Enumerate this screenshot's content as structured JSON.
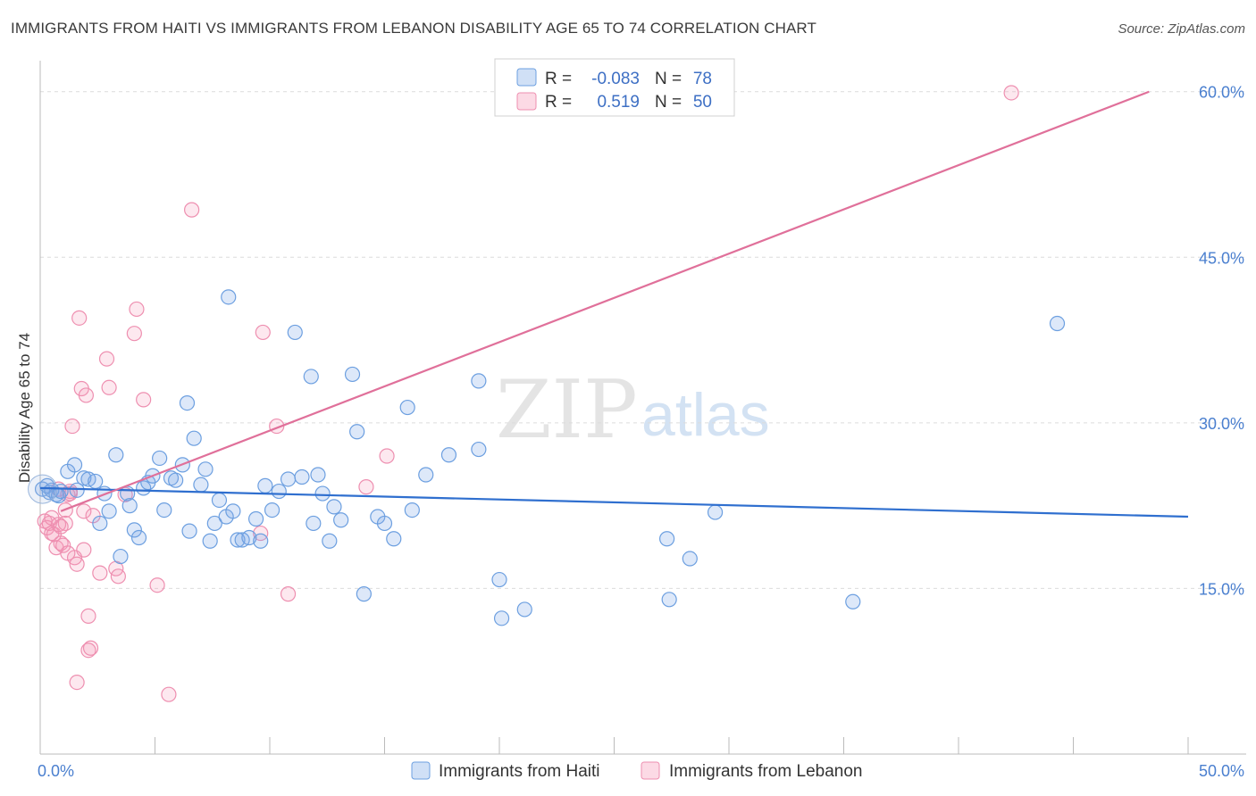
{
  "title": "IMMIGRANTS FROM HAITI VS IMMIGRANTS FROM LEBANON DISABILITY AGE 65 TO 74 CORRELATION CHART",
  "source": "Source: ZipAtlas.com",
  "watermark": {
    "zip": "ZIP",
    "atlas": "atlas"
  },
  "colors": {
    "haiti_fill": "rgba(120,165,230,0.25)",
    "haiti_stroke": "#6c9fe0",
    "haiti_line": "#2f6fcf",
    "lebanon_fill": "rgba(245,150,180,0.22)",
    "lebanon_stroke": "#ee8fb0",
    "lebanon_line": "#e0709a",
    "grid": "#dcdcdc",
    "tick_text": "#4a7fcf"
  },
  "legend": {
    "row1": {
      "r_label": "R =",
      "r_value": "-0.083",
      "n_label": "N =",
      "n_value": "78"
    },
    "row2": {
      "r_label": "R =",
      "r_value": "0.519",
      "n_label": "N =",
      "n_value": "50"
    }
  },
  "chart_data": {
    "type": "scatter",
    "title": "IMMIGRANTS FROM HAITI VS IMMIGRANTS FROM LEBANON DISABILITY AGE 65 TO 74 CORRELATION CHART",
    "xlabel": "",
    "ylabel": "Disability Age 65 to 74",
    "xlim": [
      0,
      50
    ],
    "ylim": [
      0,
      62
    ],
    "x_tick_labels": [
      {
        "value": 0,
        "label": "0.0%"
      },
      {
        "value": 50,
        "label": "50.0%"
      }
    ],
    "y_tick_labels": [
      {
        "value": 15,
        "label": "15.0%"
      },
      {
        "value": 30,
        "label": "30.0%"
      },
      {
        "value": 45,
        "label": "45.0%"
      },
      {
        "value": 60,
        "label": "60.0%"
      }
    ],
    "series": [
      {
        "name": "Immigrants from Haiti",
        "r": -0.083,
        "n": 78,
        "trend": {
          "x": [
            0,
            50
          ],
          "y": [
            24.1,
            21.5
          ]
        },
        "points": [
          [
            0.1,
            24.0
          ],
          [
            0.3,
            24.3
          ],
          [
            0.4,
            23.7
          ],
          [
            0.5,
            23.9
          ],
          [
            0.7,
            23.5
          ],
          [
            0.8,
            23.4
          ],
          [
            0.9,
            23.8
          ],
          [
            1.2,
            25.6
          ],
          [
            1.5,
            26.2
          ],
          [
            1.6,
            23.9
          ],
          [
            1.9,
            25.0
          ],
          [
            2.1,
            24.9
          ],
          [
            2.4,
            24.7
          ],
          [
            2.6,
            20.9
          ],
          [
            2.8,
            23.6
          ],
          [
            3.0,
            22.0
          ],
          [
            3.3,
            27.1
          ],
          [
            3.5,
            17.9
          ],
          [
            3.8,
            23.6
          ],
          [
            3.9,
            22.5
          ],
          [
            4.1,
            20.3
          ],
          [
            4.3,
            19.6
          ],
          [
            4.5,
            24.1
          ],
          [
            4.7,
            24.6
          ],
          [
            4.9,
            25.2
          ],
          [
            5.2,
            26.8
          ],
          [
            5.4,
            22.1
          ],
          [
            5.7,
            25.0
          ],
          [
            5.9,
            24.8
          ],
          [
            6.2,
            26.2
          ],
          [
            6.4,
            31.8
          ],
          [
            6.5,
            20.2
          ],
          [
            6.7,
            28.6
          ],
          [
            7.0,
            24.4
          ],
          [
            7.2,
            25.8
          ],
          [
            7.4,
            19.3
          ],
          [
            7.6,
            20.9
          ],
          [
            7.8,
            23.0
          ],
          [
            8.1,
            21.5
          ],
          [
            8.2,
            41.4
          ],
          [
            8.4,
            22.0
          ],
          [
            8.6,
            19.4
          ],
          [
            8.8,
            19.4
          ],
          [
            9.1,
            19.6
          ],
          [
            9.4,
            21.3
          ],
          [
            9.6,
            19.3
          ],
          [
            9.8,
            24.3
          ],
          [
            10.1,
            22.1
          ],
          [
            10.4,
            23.8
          ],
          [
            10.8,
            24.9
          ],
          [
            11.1,
            38.2
          ],
          [
            11.4,
            25.1
          ],
          [
            11.8,
            34.2
          ],
          [
            11.9,
            20.9
          ],
          [
            12.1,
            25.3
          ],
          [
            12.3,
            23.6
          ],
          [
            12.6,
            19.3
          ],
          [
            12.8,
            22.4
          ],
          [
            13.1,
            21.2
          ],
          [
            13.6,
            34.4
          ],
          [
            13.8,
            29.2
          ],
          [
            14.1,
            14.5
          ],
          [
            14.7,
            21.5
          ],
          [
            15.0,
            20.9
          ],
          [
            15.4,
            19.5
          ],
          [
            16.0,
            31.4
          ],
          [
            16.2,
            22.1
          ],
          [
            16.8,
            25.3
          ],
          [
            17.8,
            27.1
          ],
          [
            19.1,
            33.8
          ],
          [
            19.1,
            27.6
          ],
          [
            20.0,
            15.8
          ],
          [
            20.1,
            12.3
          ],
          [
            21.1,
            13.1
          ],
          [
            27.3,
            19.5
          ],
          [
            27.4,
            14.0
          ],
          [
            28.3,
            17.7
          ],
          [
            29.4,
            21.9
          ],
          [
            35.4,
            13.8
          ],
          [
            44.3,
            39.0
          ]
        ]
      },
      {
        "name": "Immigrants from Lebanon",
        "r": 0.519,
        "n": 50,
        "trend": {
          "x": [
            0.9,
            48.3
          ],
          "y": [
            22.0,
            60.0
          ]
        },
        "points": [
          [
            0.2,
            21.1
          ],
          [
            0.3,
            20.5
          ],
          [
            0.4,
            20.9
          ],
          [
            0.5,
            20.0
          ],
          [
            0.6,
            19.9
          ],
          [
            0.7,
            18.7
          ],
          [
            0.8,
            20.8
          ],
          [
            0.9,
            19.1
          ],
          [
            1.0,
            18.9
          ],
          [
            1.1,
            22.1
          ],
          [
            1.1,
            20.9
          ],
          [
            1.2,
            23.5
          ],
          [
            1.3,
            23.8
          ],
          [
            1.4,
            29.7
          ],
          [
            1.5,
            17.8
          ],
          [
            1.6,
            17.2
          ],
          [
            1.6,
            6.5
          ],
          [
            1.7,
            39.5
          ],
          [
            1.8,
            33.1
          ],
          [
            1.9,
            22.0
          ],
          [
            1.9,
            18.5
          ],
          [
            2.0,
            32.5
          ],
          [
            2.1,
            12.5
          ],
          [
            2.1,
            9.4
          ],
          [
            2.2,
            9.6
          ],
          [
            2.3,
            21.6
          ],
          [
            2.6,
            16.4
          ],
          [
            2.9,
            35.8
          ],
          [
            3.0,
            33.2
          ],
          [
            3.3,
            16.8
          ],
          [
            3.4,
            16.1
          ],
          [
            3.7,
            23.5
          ],
          [
            4.1,
            38.1
          ],
          [
            4.2,
            40.3
          ],
          [
            4.5,
            32.1
          ],
          [
            5.1,
            15.3
          ],
          [
            5.6,
            5.4
          ],
          [
            6.6,
            49.3
          ],
          [
            9.6,
            20.0
          ],
          [
            9.7,
            38.2
          ],
          [
            10.3,
            29.7
          ],
          [
            10.8,
            14.5
          ],
          [
            14.2,
            24.2
          ],
          [
            15.1,
            27.0
          ],
          [
            42.3,
            59.9
          ],
          [
            0.8,
            24.0
          ],
          [
            1.3,
            23.6
          ],
          [
            0.5,
            21.4
          ],
          [
            0.9,
            20.6
          ],
          [
            1.2,
            18.2
          ]
        ]
      }
    ]
  },
  "bottom_legend": {
    "haiti": "Immigrants from Haiti",
    "lebanon": "Immigrants from Lebanon"
  }
}
